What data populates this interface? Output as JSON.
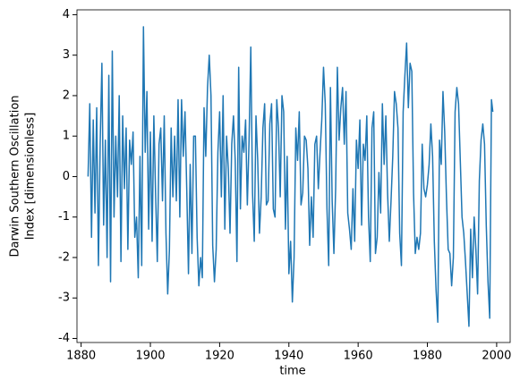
{
  "chart_data": {
    "type": "line",
    "xlabel": "time",
    "ylabel_lines": [
      "Darwin Southern Oscillation",
      "Index [dimensionless]"
    ],
    "xlim": [
      1878.8,
      2003.9
    ],
    "xticks": [
      1880,
      1900,
      1920,
      1940,
      1960,
      1980,
      2000
    ],
    "ylim": [
      -4.1,
      4.12
    ],
    "yticks": [
      -4,
      -3,
      -2,
      -1,
      0,
      1,
      2,
      3,
      4
    ],
    "grid": false,
    "x": [
      1882,
      1882.5,
      1883,
      1883.5,
      1884,
      1884.5,
      1885,
      1885.5,
      1886,
      1886.5,
      1887,
      1887.5,
      1888,
      1888.5,
      1889,
      1889.5,
      1890,
      1890.5,
      1891,
      1891.5,
      1892,
      1892.5,
      1893,
      1893.5,
      1894,
      1894.5,
      1895,
      1895.5,
      1896,
      1896.5,
      1897,
      1897.5,
      1898,
      1898.5,
      1899,
      1899.5,
      1900,
      1900.5,
      1901,
      1901.5,
      1902,
      1902.5,
      1903,
      1903.5,
      1904,
      1904.5,
      1905,
      1905.5,
      1906,
      1906.5,
      1907,
      1907.5,
      1908,
      1908.5,
      1909,
      1909.5,
      1910,
      1910.5,
      1911,
      1911.5,
      1912,
      1912.5,
      1913,
      1913.5,
      1914,
      1914.5,
      1915,
      1915.5,
      1916,
      1916.5,
      1917,
      1917.5,
      1918,
      1918.5,
      1919,
      1919.5,
      1920,
      1920.5,
      1921,
      1921.5,
      1922,
      1922.5,
      1923,
      1923.5,
      1924,
      1924.5,
      1925,
      1925.5,
      1926,
      1926.5,
      1927,
      1927.5,
      1928,
      1928.5,
      1929,
      1929.5,
      1930,
      1930.5,
      1931,
      1931.5,
      1932,
      1932.5,
      1933,
      1933.5,
      1934,
      1934.5,
      1935,
      1935.5,
      1936,
      1936.5,
      1937,
      1937.5,
      1938,
      1938.5,
      1939,
      1939.5,
      1940,
      1940.5,
      1941,
      1941.5,
      1942,
      1942.5,
      1943,
      1943.5,
      1944,
      1944.5,
      1945,
      1945.5,
      1946,
      1946.5,
      1947,
      1947.5,
      1948,
      1948.5,
      1949,
      1949.5,
      1950,
      1950.5,
      1951,
      1951.5,
      1952,
      1952.5,
      1953,
      1953.5,
      1954,
      1954.5,
      1955,
      1955.5,
      1956,
      1956.5,
      1957,
      1957.5,
      1958,
      1958.5,
      1959,
      1959.5,
      1960,
      1960.5,
      1961,
      1961.5,
      1962,
      1962.5,
      1963,
      1963.5,
      1964,
      1964.5,
      1965,
      1965.5,
      1966,
      1966.5,
      1967,
      1967.5,
      1968,
      1968.5,
      1969,
      1969.5,
      1970,
      1970.5,
      1971,
      1971.5,
      1972,
      1972.5,
      1973,
      1973.5,
      1974,
      1974.5,
      1975,
      1975.5,
      1976,
      1976.5,
      1977,
      1977.5,
      1978,
      1978.5,
      1979,
      1979.5,
      1980,
      1980.5,
      1981,
      1981.5,
      1982,
      1982.5,
      1983,
      1983.5,
      1984,
      1984.5,
      1985,
      1985.5,
      1986,
      1986.5,
      1987,
      1987.5,
      1988,
      1988.5,
      1989,
      1989.5,
      1990,
      1990.5,
      1991,
      1991.5,
      1992,
      1992.5,
      1993,
      1993.5,
      1994,
      1994.5,
      1995,
      1995.5,
      1996,
      1996.5,
      1997,
      1997.5,
      1998,
      1998.5,
      1998.9
    ],
    "series": [
      {
        "color": "#1f77b4",
        "values": [
          0.0,
          1.8,
          -1.5,
          1.4,
          -0.9,
          1.7,
          -2.2,
          0.8,
          2.8,
          -1.2,
          0.9,
          -2.0,
          2.5,
          -2.6,
          3.1,
          -1.0,
          1.0,
          -0.5,
          2.0,
          -2.1,
          1.5,
          -0.3,
          1.2,
          -1.8,
          0.9,
          0.3,
          1.1,
          -1.5,
          -1.0,
          -2.5,
          0.5,
          -2.2,
          3.7,
          0.6,
          2.1,
          -1.3,
          1.1,
          -1.6,
          1.5,
          -0.4,
          -2.1,
          0.8,
          1.2,
          -0.6,
          1.5,
          -1.4,
          -2.9,
          -1.8,
          1.2,
          -0.5,
          1.0,
          -0.6,
          1.9,
          -1.0,
          1.9,
          0.5,
          1.6,
          -0.3,
          -2.4,
          0.3,
          -1.9,
          1.0,
          1.0,
          -1.5,
          -2.7,
          -2.0,
          -2.5,
          1.7,
          0.5,
          2.2,
          3.0,
          2.0,
          -1.7,
          -2.6,
          -1.8,
          0.6,
          1.6,
          -0.5,
          2.0,
          -1.3,
          1.0,
          0.2,
          -1.4,
          0.8,
          1.5,
          0.4,
          -2.1,
          2.7,
          -0.8,
          1.0,
          0.6,
          1.4,
          -0.7,
          0.9,
          3.2,
          -0.4,
          -1.6,
          1.5,
          0.4,
          -1.4,
          -0.5,
          1.2,
          1.8,
          -0.7,
          -0.6,
          1.3,
          1.8,
          -0.8,
          -1.0,
          1.9,
          1.2,
          -0.5,
          2.0,
          1.6,
          -1.3,
          0.5,
          -2.4,
          -1.6,
          -3.1,
          -2.0,
          1.2,
          0.4,
          1.6,
          -0.7,
          -0.4,
          1.0,
          0.9,
          0.2,
          -1.7,
          -0.5,
          -1.5,
          0.8,
          1.0,
          -0.3,
          0.6,
          1.4,
          2.7,
          1.8,
          -0.8,
          -2.2,
          2.2,
          -0.6,
          -1.9,
          -0.3,
          2.7,
          0.9,
          1.7,
          2.2,
          0.8,
          2.1,
          -0.9,
          -1.3,
          -1.8,
          -0.3,
          -1.6,
          0.9,
          0.2,
          1.4,
          -1.2,
          0.8,
          0.4,
          1.5,
          -1.0,
          -2.1,
          1.2,
          1.6,
          -1.9,
          -1.5,
          0.1,
          -0.9,
          1.8,
          0.3,
          1.5,
          -0.4,
          -1.6,
          -0.6,
          0.5,
          2.1,
          1.8,
          1.2,
          -1.4,
          -2.2,
          1.6,
          2.5,
          3.3,
          1.7,
          2.8,
          2.6,
          -0.4,
          -1.9,
          -1.5,
          -1.8,
          -1.4,
          0.8,
          -0.3,
          -0.5,
          -0.2,
          0.3,
          1.3,
          0.5,
          -1.6,
          -2.8,
          -3.6,
          0.9,
          0.3,
          2.1,
          1.1,
          -0.5,
          -1.8,
          -1.9,
          -2.7,
          -2.0,
          1.6,
          2.2,
          1.8,
          0.4,
          -1.0,
          -1.4,
          -2.1,
          -2.9,
          -3.7,
          -1.3,
          -2.5,
          -1.0,
          -1.8,
          -2.9,
          -0.1,
          0.9,
          1.3,
          0.8,
          -1.2,
          -2.6,
          -3.5,
          1.9,
          1.6
        ]
      }
    ]
  }
}
